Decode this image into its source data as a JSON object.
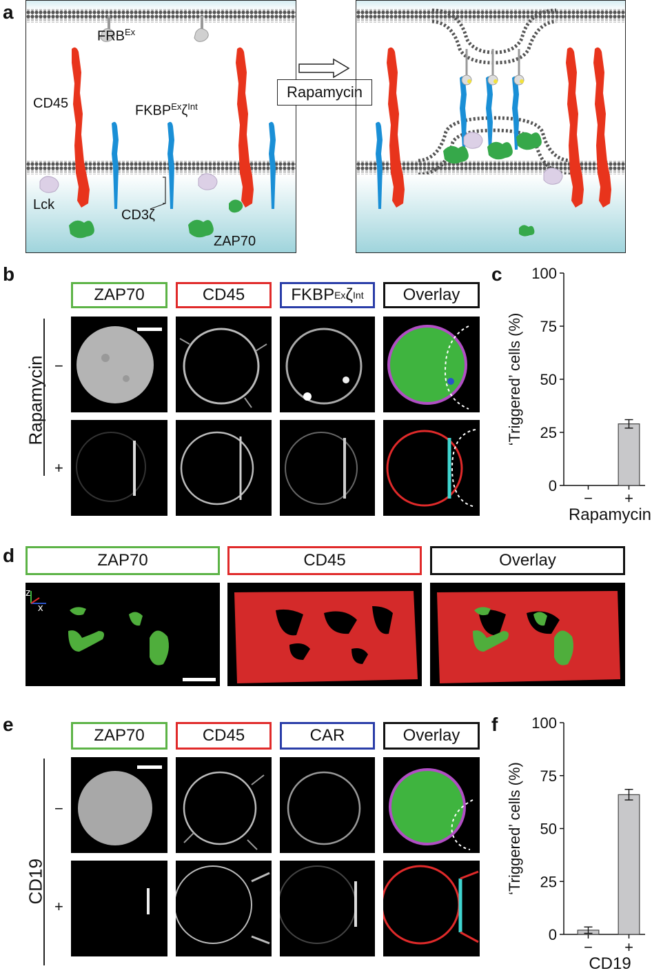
{
  "panels": {
    "a": {
      "letter": "a",
      "labels": {
        "frb": "FRB",
        "frb_sup": "Ex",
        "cd45": "CD45",
        "fkbp": "FKBP",
        "fkbp_sup1": "Ex",
        "fkbp_zeta": "ζ",
        "fkbp_sup2": "Int",
        "lck": "Lck",
        "cd3z": "CD3ζ",
        "zap70": "ZAP70",
        "rapamycin": "Rapamycin"
      }
    },
    "b": {
      "letter": "b",
      "headers": [
        "ZAP70",
        "CD45",
        "FKBP",
        "Overlay"
      ],
      "fkbp_sup1": "Ex",
      "fkbp_zeta": "ζ",
      "fkbp_sup2": "Int",
      "row_label": "Rapamycin",
      "rows": [
        "−",
        "+"
      ]
    },
    "c": {
      "letter": "c"
    },
    "d": {
      "letter": "d",
      "headers": [
        "ZAP70",
        "CD45",
        "Overlay"
      ],
      "axis_z": "z",
      "axis_x": "x"
    },
    "e": {
      "letter": "e",
      "headers": [
        "ZAP70",
        "CD45",
        "CAR",
        "Overlay"
      ],
      "row_label": "CD19",
      "rows": [
        "−",
        "+"
      ]
    },
    "f": {
      "letter": "f"
    }
  },
  "colors": {
    "zap70": "#5cb346",
    "cd45": "#e02a2a",
    "fkbp": "#2a3da8",
    "overlay": "#111111",
    "membrane_red": "#e8341c",
    "receptor_blue": "#1a8fd6",
    "bar": "#c8c8ca"
  },
  "chart_data": [
    {
      "type": "bar",
      "panel": "c",
      "categories": [
        "−",
        "+"
      ],
      "values": [
        0,
        29
      ],
      "errors": [
        0,
        2
      ],
      "ylabel": "‘Triggered’ cells (%)",
      "xlabel": "Rapamycin",
      "ylim": [
        0,
        100
      ],
      "yticks": [
        "0",
        "25",
        "50",
        "75",
        "100"
      ]
    },
    {
      "type": "bar",
      "panel": "f",
      "categories": [
        "−",
        "+"
      ],
      "values": [
        2,
        66
      ],
      "errors": [
        1.5,
        2.5
      ],
      "ylabel": "‘Triggered’ cells (%)",
      "xlabel": "CD19",
      "ylim": [
        0,
        100
      ],
      "yticks": [
        "0",
        "25",
        "50",
        "75",
        "100"
      ]
    }
  ]
}
